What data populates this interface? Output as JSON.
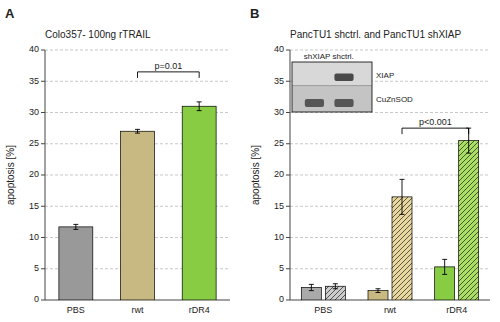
{
  "chart_data": [
    {
      "type": "bar",
      "title": "Colo357- 100ng rTRAIL",
      "panel_label": "A",
      "categories": [
        "PBS",
        "rwt",
        "rDR4"
      ],
      "values": [
        11.7,
        27.0,
        31.0
      ],
      "errors": [
        0.4,
        0.3,
        0.7
      ],
      "colors": [
        "#999999",
        "#c8b882",
        "#88cc44"
      ],
      "ylim": [
        0,
        40
      ],
      "yticks": [
        0,
        5,
        10,
        15,
        20,
        25,
        30,
        35,
        40
      ],
      "ylabel": "apoptosis [%]",
      "grid": true,
      "annotations": [
        {
          "text": "p=0.01",
          "x": [
            "rwt",
            "rDR4"
          ],
          "y": 36.5
        }
      ]
    },
    {
      "type": "bar",
      "title": "PancTU1 shctrl. and PancTU1 shXIAP",
      "panel_label": "B",
      "categories": [
        "PBS",
        "rwt",
        "rDR4"
      ],
      "series": [
        {
          "values": [
            2.0,
            1.5,
            5.3
          ],
          "errors": [
            0.5,
            0.3,
            1.2
          ],
          "colors": [
            "#aaaaaa",
            "#c8b882",
            "#88cc44"
          ]
        },
        {
          "values": [
            2.2,
            16.5,
            25.5
          ],
          "errors": [
            0.4,
            2.8,
            2.0
          ],
          "colors": [
            "#cccccc",
            "#e8d8a0",
            "#aade66"
          ]
        }
      ],
      "ylim": [
        0,
        40
      ],
      "yticks": [
        0,
        5,
        10,
        15,
        20,
        25,
        30,
        35,
        40
      ],
      "ylabel": "apoptosis [%]",
      "grid": true,
      "annotations": [
        {
          "text": "p<0.001",
          "x": [
            "rwt",
            "rDR4"
          ],
          "y": 27.5
        }
      ],
      "inset": {
        "header": "shXIAP shctrl.",
        "labels": [
          "XIAP",
          "CuZnSOD"
        ]
      }
    }
  ]
}
